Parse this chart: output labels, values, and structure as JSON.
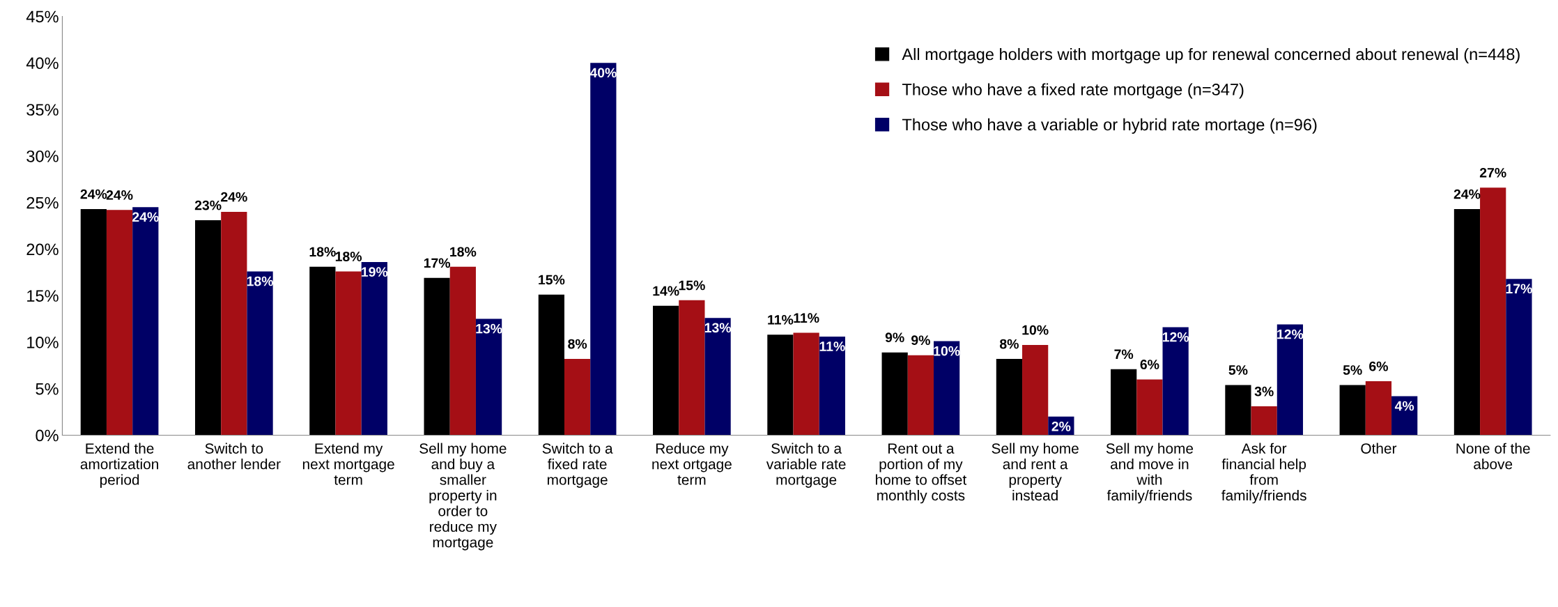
{
  "chart_data": {
    "type": "bar",
    "categories": [
      "Extend the\namortization\nperiod",
      "Switch to\nanother lender",
      "Extend my\nnext mortgage\nterm",
      "Sell my home\nand buy a\nsmaller\nproperty in\norder to\nreduce my\nmortgage",
      "Switch to a\nfixed rate\nmortgage",
      "Reduce my\nnext ortgage\nterm",
      "Switch to a\nvariable rate\nmortgage",
      "Rent out a\nportion of my\nhome to offset\nmonthly costs",
      "Sell my home\nand rent a\nproperty\ninstead",
      "Sell my home\nand move in\nwith\nfamily/friends",
      "Ask for\nfinancial help\nfrom\nfamily/friends",
      "Other",
      "None of the\nabove"
    ],
    "series": [
      {
        "name": "All mortgage holders with mortgage up for renewal concerned about renewal (n=448)",
        "color": "#000000",
        "values": [
          24.3,
          23.1,
          18.1,
          16.9,
          15.1,
          13.9,
          10.8,
          8.9,
          8.2,
          7.1,
          5.4,
          5.4,
          24.3
        ],
        "value_labels": [
          "24%",
          "23%",
          "18%",
          "17%",
          "15%",
          "14%",
          "11%",
          "9%",
          "8%",
          "7%",
          "5%",
          "5%",
          "24%"
        ]
      },
      {
        "name": "Those who have a fixed rate mortgage (n=347)",
        "color": "#a50f15",
        "values": [
          24.2,
          24.0,
          17.6,
          18.1,
          8.2,
          14.5,
          11.0,
          8.6,
          9.7,
          6.0,
          3.1,
          5.8,
          26.6
        ],
        "value_labels": [
          "24%",
          "24%",
          "18%",
          "18%",
          "8%",
          "15%",
          "11%",
          "9%",
          "10%",
          "6%",
          "3%",
          "6%",
          "27%"
        ]
      },
      {
        "name": "Those who have a variable or hybrid rate mortage (n=96)",
        "color": "#000066",
        "values": [
          24.5,
          17.6,
          18.6,
          12.5,
          40.0,
          12.6,
          10.6,
          10.1,
          2.0,
          11.6,
          11.9,
          4.2,
          16.8
        ],
        "value_labels": [
          "24%",
          "18%",
          "19%",
          "13%",
          "40%",
          "13%",
          "11%",
          "10%",
          "2%",
          "12%",
          "12%",
          "4%",
          "17%"
        ]
      }
    ],
    "ylim": [
      0,
      45
    ],
    "yticks": [
      {
        "value": 0,
        "label": "0%"
      },
      {
        "value": 5,
        "label": "5%"
      },
      {
        "value": 10,
        "label": "10%"
      },
      {
        "value": 15,
        "label": "15%"
      },
      {
        "value": 20,
        "label": "20%"
      },
      {
        "value": 25,
        "label": "25%"
      },
      {
        "value": 30,
        "label": "30%"
      },
      {
        "value": 35,
        "label": "35%"
      },
      {
        "value": 40,
        "label": "40%"
      },
      {
        "value": 45,
        "label": "45%"
      }
    ],
    "grid": false,
    "legend": "top right"
  }
}
